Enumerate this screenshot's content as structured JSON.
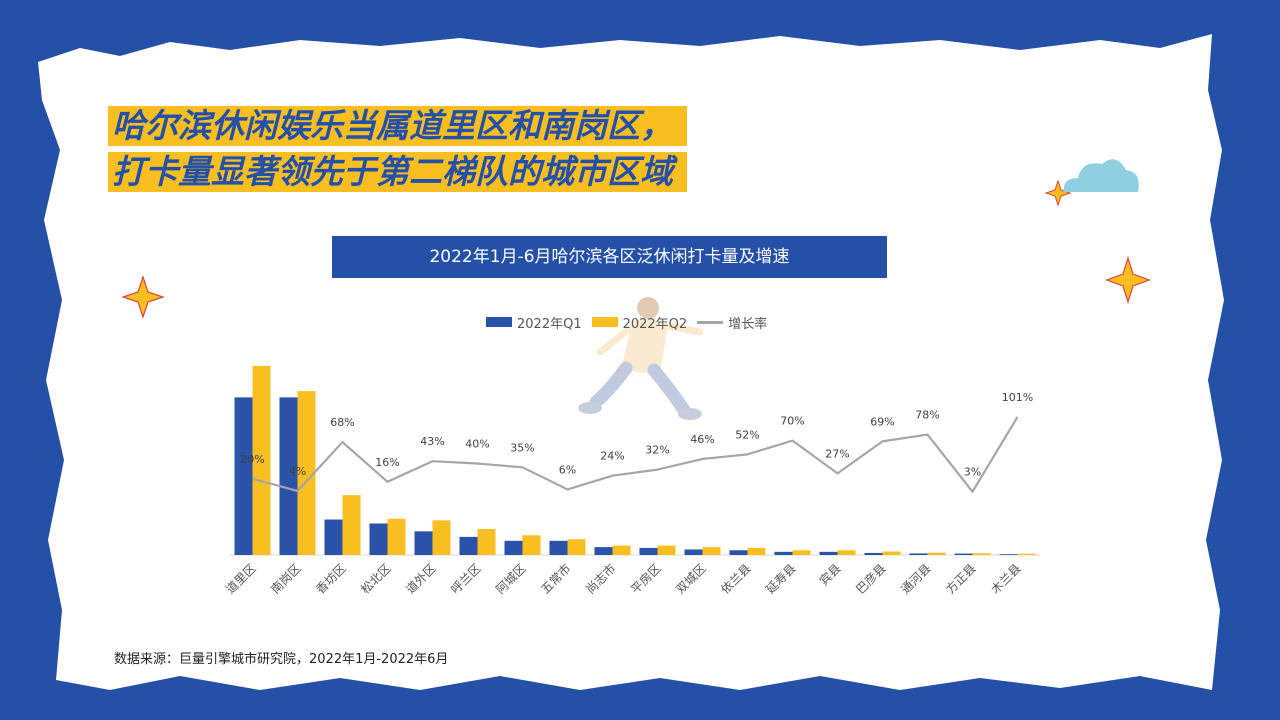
{
  "title": {
    "line1": "哈尔滨休闲娱乐当属道里区和南岗区，",
    "line2": "打卡量显著领先于第二梯队的城市区域"
  },
  "subtitle": "2022年1月-6月哈尔滨各区泛休闲打卡量及增速",
  "source": "数据来源：巨量引擎城市研究院，2022年1月-2022年6月",
  "colors": {
    "background": "#2450a8",
    "q1": "#2a52a8",
    "q2": "#f9bf21",
    "growth": "#a6a6a6",
    "title_text": "#2450a8",
    "title_highlight": "#f9bf21"
  },
  "chart_data": {
    "type": "bar",
    "categories": [
      "道里区",
      "南岗区",
      "香坊区",
      "松北区",
      "道外区",
      "呼兰区",
      "阿城区",
      "五常市",
      "尚志市",
      "平房区",
      "双城区",
      "依兰县",
      "延寿县",
      "宾县",
      "巴彦县",
      "通河县",
      "方正县",
      "木兰县"
    ],
    "series": [
      {
        "name": "2022年Q1",
        "kind": "bar",
        "axis": "left",
        "values": [
          100,
          100,
          22.5,
          20,
          15,
          11.5,
          9,
          9,
          5,
          4.5,
          3.5,
          3,
          2,
          2,
          1.3,
          1,
          0.9,
          0.5
        ]
      },
      {
        "name": "2022年Q2",
        "kind": "bar",
        "axis": "left",
        "values": [
          120,
          104,
          38,
          23,
          22,
          16.5,
          12.5,
          10,
          6,
          6,
          5,
          4.5,
          3,
          3,
          2.2,
          1.5,
          1.1,
          0.8
        ]
      },
      {
        "name": "增长率",
        "kind": "line",
        "axis": "right",
        "values": [
          20,
          4,
          68,
          16,
          43,
          40,
          35,
          6,
          24,
          32,
          46,
          52,
          70,
          27,
          69,
          78,
          3,
          101
        ]
      }
    ],
    "data_labels": [
      "20%",
      "4%",
      "68%",
      "16%",
      "43%",
      "40%",
      "35%",
      "6%",
      "24%",
      "32%",
      "46%",
      "52%",
      "70%",
      "27%",
      "69%",
      "78%",
      "3%",
      "101%"
    ],
    "ylim_left": [
      0,
      125
    ],
    "ylim_right": [
      -80,
      160
    ],
    "grid": false,
    "legend": "top-center"
  }
}
